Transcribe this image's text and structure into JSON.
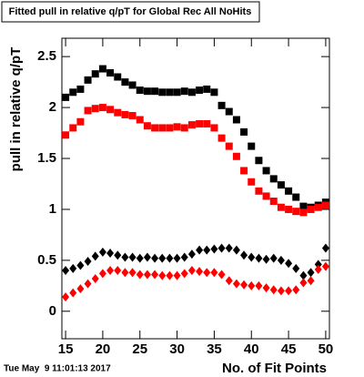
{
  "chart_data": {
    "type": "scatter",
    "title": "Fitted pull in relative q/pT for Global Rec All NoHits",
    "x_label": "No. of Fit Points",
    "y_label": "pull in relative q/pT",
    "timestamp": "Tue May  9 11:01:13 2017",
    "x": [
      15,
      16,
      17,
      18,
      19,
      20,
      21,
      22,
      23,
      24,
      25,
      26,
      27,
      28,
      29,
      30,
      31,
      32,
      33,
      34,
      35,
      36,
      37,
      38,
      39,
      40,
      41,
      42,
      43,
      44,
      45,
      46,
      47,
      48,
      49,
      50
    ],
    "series": [
      {
        "color": "#000000",
        "marker": "square",
        "values": [
          2.1,
          2.15,
          2.18,
          2.27,
          2.33,
          2.38,
          2.34,
          2.3,
          2.25,
          2.22,
          2.17,
          2.16,
          2.16,
          2.15,
          2.15,
          2.15,
          2.16,
          2.15,
          2.17,
          2.18,
          2.15,
          2.02,
          1.96,
          1.88,
          1.76,
          1.62,
          1.48,
          1.38,
          1.3,
          1.24,
          1.18,
          1.12,
          1.03,
          1.02,
          1.04,
          1.07
        ]
      },
      {
        "color": "#ff0000",
        "marker": "square",
        "values": [
          1.73,
          1.8,
          1.86,
          1.97,
          1.99,
          2.0,
          1.98,
          1.95,
          1.93,
          1.92,
          1.88,
          1.82,
          1.8,
          1.8,
          1.8,
          1.81,
          1.8,
          1.83,
          1.84,
          1.84,
          1.8,
          1.7,
          1.62,
          1.52,
          1.38,
          1.27,
          1.18,
          1.13,
          1.08,
          1.02,
          1.0,
          0.98,
          0.97,
          1.0,
          1.02,
          1.04
        ]
      },
      {
        "color": "#000000",
        "marker": "diamond",
        "values": [
          0.4,
          0.42,
          0.45,
          0.49,
          0.54,
          0.58,
          0.57,
          0.55,
          0.53,
          0.53,
          0.52,
          0.53,
          0.52,
          0.52,
          0.52,
          0.52,
          0.53,
          0.56,
          0.6,
          0.6,
          0.61,
          0.62,
          0.62,
          0.6,
          0.55,
          0.53,
          0.52,
          0.51,
          0.52,
          0.5,
          0.47,
          0.42,
          0.35,
          0.38,
          0.46,
          0.62
        ]
      },
      {
        "color": "#ff0000",
        "marker": "diamond",
        "values": [
          0.14,
          0.18,
          0.22,
          0.27,
          0.32,
          0.37,
          0.4,
          0.4,
          0.38,
          0.38,
          0.36,
          0.36,
          0.36,
          0.35,
          0.35,
          0.35,
          0.37,
          0.4,
          0.39,
          0.38,
          0.38,
          0.36,
          0.3,
          0.27,
          0.26,
          0.25,
          0.25,
          0.23,
          0.21,
          0.2,
          0.2,
          0.21,
          0.28,
          0.3,
          0.41,
          0.44
        ]
      }
    ],
    "xlim": [
      14.5,
      50.5
    ],
    "xticks": [
      15,
      20,
      25,
      30,
      35,
      40,
      45,
      50
    ],
    "ylim": [
      -0.27,
      2.68
    ],
    "yticks": [
      0,
      0.5,
      1,
      1.5,
      2,
      2.5
    ],
    "grid": false
  }
}
